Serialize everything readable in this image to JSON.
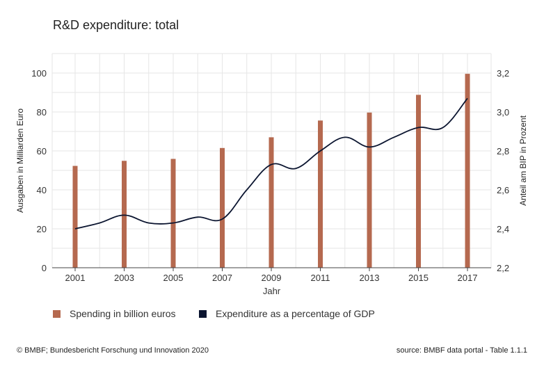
{
  "chart_data": {
    "type": "bar+line",
    "title": "R&D expenditure: total",
    "xlabel": "Jahr",
    "ylabel_left": "Ausgaben in Milliarden Euro",
    "ylabel_right": "Anteil am BIP in Prozent",
    "ylim_left": [
      0,
      110
    ],
    "ylim_right": [
      2.2,
      3.3
    ],
    "yticks_left": [
      "0",
      "20",
      "40",
      "60",
      "80",
      "100"
    ],
    "yticks_right": [
      "2,2",
      "2,4",
      "2,6",
      "2,8",
      "3,0",
      "3,2"
    ],
    "xticks": [
      "2001",
      "2003",
      "2005",
      "2007",
      "2009",
      "2011",
      "2013",
      "2015",
      "2017"
    ],
    "grid": true,
    "series": [
      {
        "name": "Spending in billion euros",
        "kind": "bar",
        "axis": "left",
        "color": "#b5694f",
        "x": [
          2001,
          2003,
          2005,
          2007,
          2009,
          2011,
          2013,
          2015,
          2017
        ],
        "values": [
          52.3,
          54.9,
          55.9,
          61.5,
          67.0,
          75.6,
          79.7,
          88.8,
          99.6
        ]
      },
      {
        "name": "Expenditure as a percentage of GDP",
        "kind": "line",
        "axis": "right",
        "color": "#0b1530",
        "x": [
          2001,
          2002,
          2003,
          2004,
          2005,
          2006,
          2007,
          2008,
          2009,
          2010,
          2011,
          2012,
          2013,
          2014,
          2015,
          2016,
          2017
        ],
        "values": [
          2.4,
          2.43,
          2.47,
          2.43,
          2.43,
          2.46,
          2.45,
          2.6,
          2.73,
          2.71,
          2.8,
          2.87,
          2.82,
          2.87,
          2.92,
          2.92,
          3.07
        ]
      }
    ],
    "legend_position": "bottom-left"
  },
  "footer": {
    "left": "© BMBF; Bundesbericht Forschung und Innovation 2020",
    "right": "source: BMBF data portal - Table 1.1.1"
  }
}
